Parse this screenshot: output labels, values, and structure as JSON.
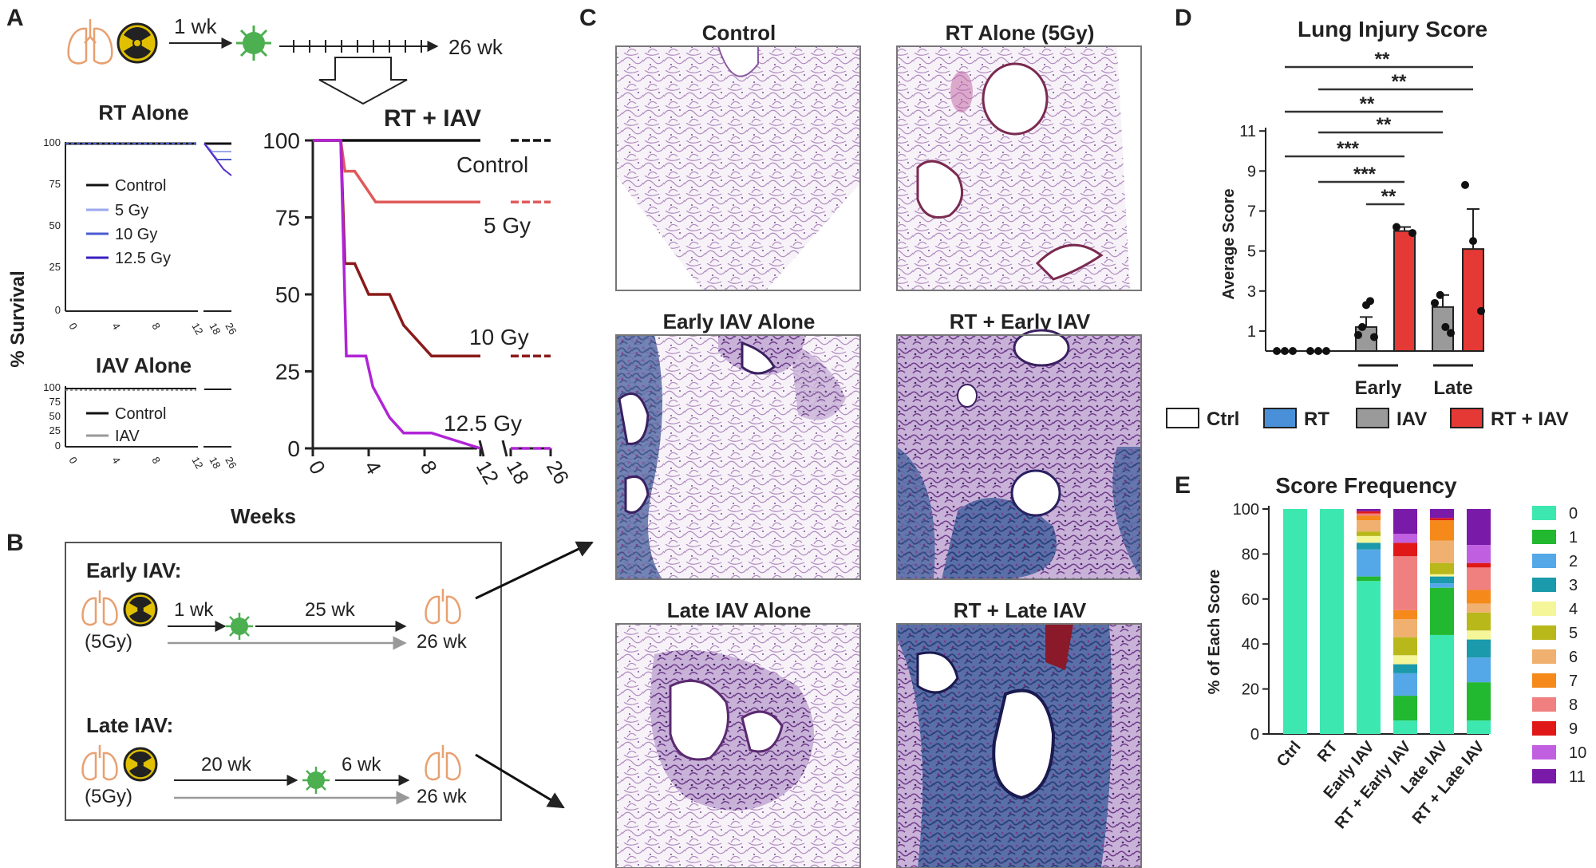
{
  "colors": {
    "control": "#111111",
    "gy5": "#e05a5a",
    "gy10": "#8b1a1a",
    "gy12_5": "#b024d6",
    "rt_small": "#4a5bd0",
    "rt_small_light": "#9aa8ee",
    "iav_small": "#999999",
    "ctrl_bar": "#ffffff",
    "rt_bar": "#4a90d9",
    "iav_bar": "#9a9a9a",
    "rtiav_bar": "#e53935",
    "lung": "#e8a070",
    "radiation": "#e0c000",
    "virus": "#4caf50"
  },
  "panels": {
    "A": "A",
    "B": "B",
    "C": "C",
    "D": "D",
    "E": "E"
  },
  "panel_a": {
    "timeline": {
      "start_label": "1 wk",
      "end_label": "26 wk"
    },
    "rt_alone": {
      "title": "RT Alone",
      "legend": [
        "Control",
        "5 Gy",
        "10 Gy",
        "12.5 Gy"
      ],
      "yticks": [
        "100",
        "75",
        "50",
        "25",
        "0"
      ],
      "xticks": [
        "0",
        "4",
        "8",
        "12",
        "18",
        "26"
      ]
    },
    "iav_alone": {
      "title": "IAV Alone",
      "legend": [
        "Control",
        "IAV"
      ],
      "yticks": [
        "100",
        "75",
        "50",
        "25",
        "0"
      ],
      "xticks": [
        "0",
        "4",
        "8",
        "12",
        "18",
        "26"
      ]
    },
    "ylabel": "% Survival",
    "xlabel": "Weeks"
  },
  "chart_data": [
    {
      "type": "line",
      "title": "RT + IAV",
      "xlabel": "Weeks",
      "ylabel": "% Survival",
      "ylim": [
        0,
        100
      ],
      "xticks": [
        "0",
        "4",
        "8",
        "12",
        "18",
        "26"
      ],
      "yticks": [
        "0",
        "25",
        "50",
        "75",
        "100"
      ],
      "series": [
        {
          "name": "Control",
          "x": [
            0,
            12,
            18,
            26
          ],
          "y": [
            100,
            100,
            100,
            100
          ]
        },
        {
          "name": "5 Gy",
          "x": [
            0,
            2,
            2.3,
            3,
            4.5,
            12,
            18,
            26
          ],
          "y": [
            100,
            100,
            90,
            90,
            80,
            80,
            80,
            80
          ]
        },
        {
          "name": "10 Gy",
          "x": [
            0,
            2,
            2.3,
            3,
            4,
            4.7,
            5.5,
            6.5,
            8.5,
            12,
            18,
            26
          ],
          "y": [
            100,
            100,
            60,
            60,
            50,
            50,
            50,
            40,
            30,
            30,
            30,
            30
          ]
        },
        {
          "name": "12.5 Gy",
          "x": [
            0,
            2,
            2.4,
            3.8,
            4.3,
            5.5,
            6.5,
            8.5,
            12,
            18,
            26
          ],
          "y": [
            100,
            100,
            30,
            30,
            20,
            10,
            5,
            5,
            0,
            0,
            0
          ]
        }
      ]
    },
    {
      "type": "bar",
      "title": "Lung Injury Score",
      "ylabel": "Average Score",
      "yticks": [
        "1",
        "3",
        "5",
        "7",
        "9",
        "11"
      ],
      "ylim": [
        0,
        11
      ],
      "categories": [
        "Ctrl",
        "RT",
        "Early IAV",
        "RT + Early IAV",
        "Late IAV",
        "RT + Late IAV"
      ],
      "values": [
        0,
        0,
        1.2,
        6.0,
        2.2,
        5.1
      ],
      "errors": [
        0,
        0,
        0.5,
        0.2,
        0.6,
        2.0
      ],
      "groups": [
        "Early",
        "Late"
      ],
      "legend": [
        "Ctrl",
        "RT",
        "IAV",
        "RT + IAV"
      ],
      "significance": [
        "**",
        "**",
        "**",
        "**",
        "***",
        "***",
        "**"
      ]
    },
    {
      "type": "bar",
      "title": "Score Frequency",
      "ylabel": "% of Each Score",
      "yticks": [
        "0",
        "20",
        "40",
        "60",
        "80",
        "100"
      ],
      "ylim": [
        0,
        100
      ],
      "categories": [
        "Ctrl",
        "RT",
        "Early IAV",
        "RT + Early IAV",
        "Late IAV",
        "RT + Late IAV"
      ],
      "legend": [
        "0",
        "1",
        "2",
        "3",
        "4",
        "5",
        "6",
        "7",
        "8",
        "9",
        "10",
        "11"
      ],
      "stack_colors": [
        "#3de8b0",
        "#22b830",
        "#55a8e8",
        "#1a9aaa",
        "#f5f59a",
        "#b8b81a",
        "#f0b070",
        "#f58a1a",
        "#f08080",
        "#e01818",
        "#c060e0",
        "#7a1aa8"
      ],
      "stacks": [
        [
          100,
          0,
          0,
          0,
          0,
          0,
          0,
          0,
          0,
          0,
          0,
          0
        ],
        [
          100,
          0,
          0,
          0,
          0,
          0,
          0,
          0,
          0,
          0,
          0,
          0
        ],
        [
          68,
          2,
          12,
          3,
          3,
          2,
          5,
          2,
          1,
          1,
          0,
          1
        ],
        [
          6,
          11,
          10,
          4,
          4,
          8,
          8,
          4,
          24,
          6,
          4,
          11
        ],
        [
          44,
          21,
          2,
          3,
          1,
          5,
          10,
          9,
          0,
          1,
          0,
          4
        ],
        [
          6,
          17,
          11,
          8,
          4,
          8,
          4,
          6,
          10,
          2,
          8,
          16
        ]
      ]
    }
  ],
  "panel_a_right": {
    "labels": [
      "Control",
      "5 Gy",
      "10 Gy",
      "12.5 Gy"
    ]
  },
  "panel_b": {
    "early_title": "Early IAV:",
    "late_title": "Late IAV:",
    "dose": "(5Gy)",
    "early_gap1": "1 wk",
    "early_gap2": "25 wk",
    "late_gap1": "20 wk",
    "late_gap2": "6 wk",
    "end": "26 wk"
  },
  "panel_c": {
    "titles": [
      "Control",
      "RT Alone (5Gy)",
      "Early IAV  Alone",
      "RT +  Early IAV",
      "Late IAV  Alone",
      "RT + Late IAV"
    ]
  }
}
